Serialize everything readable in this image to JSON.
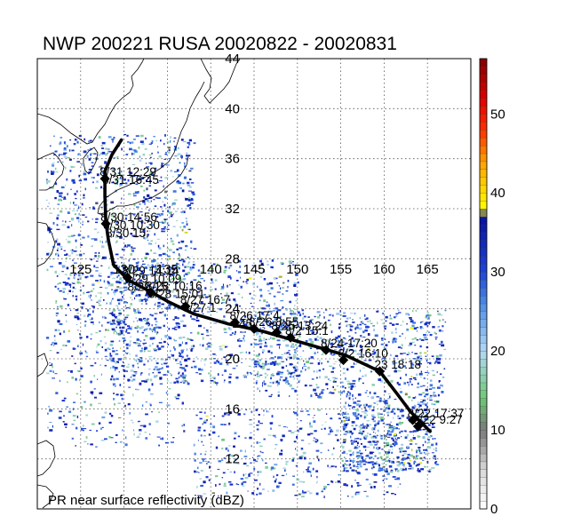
{
  "title": "NWP 200221 RUSA 20020822 - 20020831",
  "footer_label": "PR near surface reflectivity (dBZ)",
  "map": {
    "lon_range": [
      120,
      170
    ],
    "lat_range": [
      8,
      44
    ],
    "lon_ticks": [
      "125",
      "130",
      "135",
      "140",
      "145",
      "150",
      "155",
      "160",
      "165"
    ],
    "lat_ticks": [
      "44",
      "40",
      "36",
      "32",
      "28",
      "24",
      "20",
      "16",
      "12"
    ],
    "grid_lon": [
      125,
      130,
      135,
      140,
      145,
      150,
      155,
      160,
      165
    ],
    "grid_lat": [
      40,
      36,
      32,
      28,
      24,
      20,
      16,
      12
    ]
  },
  "track": {
    "color": "#000000",
    "path": [
      [
        165.3,
        14.2
      ],
      [
        163.0,
        15.8
      ],
      [
        161.5,
        17.2
      ],
      [
        159.5,
        19.0
      ],
      [
        155.5,
        20.3
      ],
      [
        152.0,
        21.0
      ],
      [
        149.0,
        21.6
      ],
      [
        146.0,
        22.2
      ],
      [
        142.0,
        22.8
      ],
      [
        138.0,
        23.6
      ],
      [
        135.0,
        24.6
      ],
      [
        133.5,
        25.2
      ],
      [
        130.5,
        26.3
      ],
      [
        128.8,
        27.5
      ],
      [
        128.2,
        29.5
      ],
      [
        127.9,
        31.0
      ],
      [
        127.8,
        33.0
      ],
      [
        127.8,
        35.0
      ],
      [
        128.6,
        36.3
      ],
      [
        129.7,
        37.5
      ]
    ],
    "points": [
      {
        "lon": 163.9,
        "lat": 14.6,
        "labels": [
          "8/22 9:27"
        ]
      },
      {
        "lon": 163.3,
        "lat": 15.1,
        "labels": [
          "8/22 17:37"
        ]
      },
      {
        "lon": 159.5,
        "lat": 19.0,
        "labels": [
          "23 18:18"
        ]
      },
      {
        "lon": 155.3,
        "lat": 19.9,
        "labels": [
          "8/2 16:10"
        ]
      },
      {
        "lon": 153.3,
        "lat": 20.7,
        "labels": [
          "8/24 17:20"
        ]
      },
      {
        "lon": 149.2,
        "lat": 21.7,
        "labels": [
          "8/2 15:1"
        ]
      },
      {
        "lon": 147.6,
        "lat": 22.1,
        "labels": [
          "8/25 13:24"
        ]
      },
      {
        "lon": 145.0,
        "lat": 22.4,
        "labels": [
          "8/26 8:55"
        ]
      },
      {
        "lon": 142.8,
        "lat": 22.9,
        "labels": [
          "8/26 17:4",
          "245"
        ]
      },
      {
        "lon": 137.1,
        "lat": 24.2,
        "labels": [
          "8/27 16:7",
          "8/27 1"
        ]
      },
      {
        "lon": 133.1,
        "lat": 25.3,
        "labels": [
          "8/28 10:16",
          "8/28 15:01"
        ]
      },
      {
        "lon": 130.4,
        "lat": 26.5,
        "labels": [
          "8/29 14:14",
          "8/29 10:09",
          "8/29 15:"
        ]
      },
      {
        "lon": 127.9,
        "lat": 30.8,
        "labels": [
          "8/30 14:56",
          "8/30 10:30",
          "8/30 15:"
        ]
      },
      {
        "lon": 127.8,
        "lat": 34.4,
        "labels": [
          "8/31 12:29",
          "8/31 16:45"
        ]
      }
    ]
  },
  "colorbar": {
    "ticks": [
      "50",
      "40",
      "30",
      "20",
      "10",
      "0"
    ],
    "stops": [
      {
        "v": 0,
        "c": "#ffffff"
      },
      {
        "v": 5,
        "c": "#d8d8d8"
      },
      {
        "v": 10,
        "c": "#7a7a7a"
      },
      {
        "v": 14,
        "c": "#6fc876"
      },
      {
        "v": 20,
        "c": "#b4d8f4"
      },
      {
        "v": 26,
        "c": "#4c8ee6"
      },
      {
        "v": 30,
        "c": "#1e44d8"
      },
      {
        "v": 37,
        "c": "#0a10a0"
      },
      {
        "v": 38,
        "c": "#ffff00"
      },
      {
        "v": 44,
        "c": "#ffa000"
      },
      {
        "v": 48,
        "c": "#ff3000"
      },
      {
        "v": 52,
        "c": "#e00000"
      },
      {
        "v": 57,
        "c": "#800000"
      }
    ],
    "vmax": 57
  },
  "rain_swaths": [
    {
      "lon": [
        121,
        138
      ],
      "lat": [
        27,
        38
      ],
      "n": 700
    },
    {
      "lon": [
        128,
        150
      ],
      "lat": [
        18,
        28
      ],
      "n": 800
    },
    {
      "lon": [
        145,
        167
      ],
      "lat": [
        17,
        24
      ],
      "n": 700
    },
    {
      "lon": [
        155,
        166
      ],
      "lat": [
        11,
        17
      ],
      "n": 500
    },
    {
      "lon": [
        138,
        162
      ],
      "lat": [
        9,
        16
      ],
      "n": 450
    },
    {
      "lon": [
        121,
        137
      ],
      "lat": [
        13,
        22
      ],
      "n": 280
    },
    {
      "lon": [
        122,
        134
      ],
      "lat": [
        22,
        27
      ],
      "n": 250
    }
  ]
}
